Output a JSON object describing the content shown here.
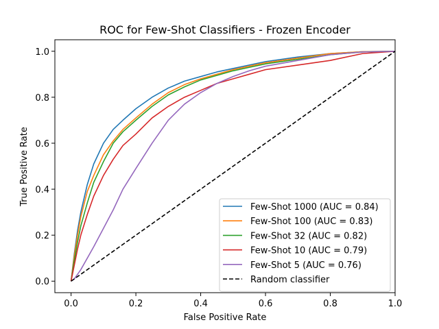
{
  "chart_data": {
    "type": "line",
    "title": "ROC for Few-Shot Classifiers - Frozen Encoder",
    "xlabel": "False Positive Rate",
    "ylabel": "True Positive Rate",
    "xlim": [
      -0.05,
      1.0
    ],
    "ylim": [
      -0.05,
      1.05
    ],
    "xticks": [
      0.0,
      0.2,
      0.4,
      0.6,
      0.8,
      1.0
    ],
    "xtick_labels": [
      "0.0",
      "0.2",
      "0.4",
      "0.6",
      "0.8",
      "1.0"
    ],
    "yticks": [
      0.0,
      0.2,
      0.4,
      0.6,
      0.8,
      1.0
    ],
    "ytick_labels": [
      "0.0",
      "0.2",
      "0.4",
      "0.6",
      "0.8",
      "1.0"
    ],
    "grid": false,
    "legend_position": "lower-right",
    "series": [
      {
        "name": "Few-Shot 1000 (AUC = 0.84)",
        "color": "#1f77b4",
        "x": [
          0,
          0.01,
          0.02,
          0.03,
          0.05,
          0.07,
          0.1,
          0.13,
          0.16,
          0.2,
          0.25,
          0.3,
          0.35,
          0.4,
          0.45,
          0.5,
          0.55,
          0.6,
          0.7,
          0.8,
          0.9,
          1.0
        ],
        "y": [
          0,
          0.12,
          0.22,
          0.3,
          0.42,
          0.51,
          0.6,
          0.66,
          0.7,
          0.75,
          0.8,
          0.84,
          0.87,
          0.89,
          0.91,
          0.925,
          0.94,
          0.955,
          0.975,
          0.99,
          0.998,
          1.0
        ]
      },
      {
        "name": "Few-Shot 100 (AUC = 0.83)",
        "color": "#ff7f0e",
        "x": [
          0,
          0.01,
          0.02,
          0.03,
          0.05,
          0.07,
          0.1,
          0.13,
          0.16,
          0.2,
          0.25,
          0.3,
          0.35,
          0.4,
          0.45,
          0.5,
          0.55,
          0.6,
          0.7,
          0.8,
          0.9,
          1.0
        ],
        "y": [
          0,
          0.11,
          0.2,
          0.28,
          0.39,
          0.46,
          0.55,
          0.61,
          0.66,
          0.71,
          0.77,
          0.82,
          0.855,
          0.88,
          0.9,
          0.92,
          0.935,
          0.95,
          0.97,
          0.99,
          0.998,
          1.0
        ]
      },
      {
        "name": "Few-Shot 32 (AUC = 0.82)",
        "color": "#2ca02c",
        "x": [
          0,
          0.01,
          0.02,
          0.03,
          0.05,
          0.07,
          0.1,
          0.13,
          0.16,
          0.2,
          0.25,
          0.3,
          0.35,
          0.4,
          0.45,
          0.5,
          0.55,
          0.6,
          0.7,
          0.8,
          0.9,
          1.0
        ],
        "y": [
          0,
          0.09,
          0.17,
          0.24,
          0.34,
          0.43,
          0.52,
          0.6,
          0.65,
          0.7,
          0.76,
          0.81,
          0.845,
          0.875,
          0.895,
          0.915,
          0.93,
          0.945,
          0.965,
          0.985,
          0.997,
          1.0
        ]
      },
      {
        "name": "Few-Shot 10 (AUC = 0.79)",
        "color": "#d62728",
        "x": [
          0,
          0.01,
          0.02,
          0.03,
          0.05,
          0.07,
          0.1,
          0.13,
          0.16,
          0.2,
          0.25,
          0.3,
          0.35,
          0.4,
          0.45,
          0.5,
          0.55,
          0.6,
          0.7,
          0.8,
          0.9,
          1.0
        ],
        "y": [
          0,
          0.07,
          0.14,
          0.2,
          0.29,
          0.37,
          0.46,
          0.53,
          0.59,
          0.64,
          0.71,
          0.76,
          0.8,
          0.83,
          0.86,
          0.88,
          0.9,
          0.92,
          0.94,
          0.96,
          0.99,
          1.0
        ]
      },
      {
        "name": "Few-Shot 5 (AUC = 0.76)",
        "color": "#9467bd",
        "x": [
          0,
          0.01,
          0.02,
          0.03,
          0.05,
          0.07,
          0.1,
          0.13,
          0.16,
          0.2,
          0.25,
          0.3,
          0.35,
          0.4,
          0.45,
          0.5,
          0.55,
          0.6,
          0.7,
          0.8,
          0.9,
          1.0
        ],
        "y": [
          0,
          0.01,
          0.03,
          0.05,
          0.1,
          0.15,
          0.23,
          0.31,
          0.4,
          0.49,
          0.6,
          0.7,
          0.77,
          0.82,
          0.86,
          0.89,
          0.915,
          0.935,
          0.96,
          0.985,
          0.997,
          1.0
        ]
      },
      {
        "name": "Random classifier",
        "color": "#000000",
        "dashed": true,
        "x": [
          0,
          1
        ],
        "y": [
          0,
          1
        ]
      }
    ]
  }
}
